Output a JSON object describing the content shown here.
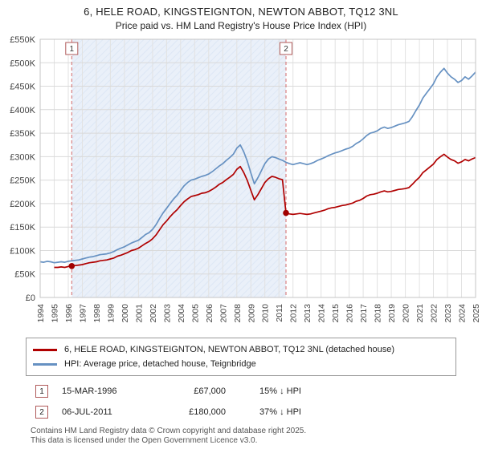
{
  "title": "6, HELE ROAD, KINGSTEIGNTON, NEWTON ABBOT, TQ12 3NL",
  "subtitle": "Price paid vs. HM Land Registry's House Price Index (HPI)",
  "chart_data": {
    "type": "line",
    "x_range": [
      1994,
      2025
    ],
    "y_range": [
      0,
      550
    ],
    "y_unit": "GBP thousands",
    "y_tick_step": 50,
    "y_tick_labels": [
      "£0",
      "£50K",
      "£100K",
      "£150K",
      "£200K",
      "£250K",
      "£300K",
      "£350K",
      "£400K",
      "£450K",
      "£500K",
      "£550K"
    ],
    "x_ticks": [
      1994,
      1995,
      1996,
      1997,
      1998,
      1999,
      2000,
      2001,
      2002,
      2003,
      2004,
      2005,
      2006,
      2007,
      2008,
      2009,
      2010,
      2011,
      2012,
      2013,
      2014,
      2015,
      2016,
      2017,
      2018,
      2019,
      2020,
      2021,
      2022,
      2023,
      2024,
      2025
    ],
    "grid": true,
    "legend_position": "bottom",
    "colors": {
      "shade_fill": "#eaf0f9",
      "shade_stripe": "#dde7f5",
      "dashed_line": "#d46a6a",
      "grid_h": "#d9d9d9",
      "grid_v": "#e2e2e2",
      "plot_border": "#c5c5c5",
      "marker_dot": "#a00000",
      "badge_border": "#b05a5a"
    },
    "shaded_region": {
      "from": 1996.25,
      "to": 2011.5
    },
    "series": [
      {
        "id": "property",
        "name": "6, HELE ROAD, KINGSTEIGNTON, NEWTON ABBOT, TQ12 3NL (detached house)",
        "color": "#b00000",
        "x_start": 1995.0,
        "x_step": 0.25,
        "values": [
          64,
          64,
          65,
          64,
          66,
          67,
          68,
          69,
          70,
          72,
          74,
          75,
          76,
          78,
          79,
          80,
          82,
          84,
          88,
          90,
          93,
          96,
          100,
          102,
          105,
          110,
          115,
          119,
          125,
          133,
          144,
          155,
          163,
          172,
          180,
          187,
          196,
          204,
          210,
          215,
          217,
          219,
          222,
          223,
          226,
          230,
          235,
          241,
          245,
          251,
          256,
          262,
          273,
          279,
          266,
          249,
          228,
          208,
          219,
          232,
          245,
          253,
          258,
          256,
          253,
          251,
          180,
          178,
          177,
          178,
          179,
          178,
          177,
          178,
          180,
          182,
          184,
          186,
          189,
          191,
          192,
          194,
          196,
          197,
          199,
          201,
          205,
          207,
          211,
          216,
          219,
          220,
          222,
          225,
          227,
          225,
          226,
          228,
          230,
          231,
          232,
          234,
          241,
          249,
          256,
          266,
          272,
          278,
          284,
          294,
          300,
          305,
          299,
          294,
          291,
          286,
          289,
          294,
          291,
          295,
          298
        ]
      },
      {
        "id": "hpi",
        "name": "HPI: Average price, detached house, Teignbridge",
        "color": "#6691c2",
        "x_start": 1994.0,
        "x_step": 0.25,
        "values": [
          76,
          75,
          77,
          76,
          74,
          75,
          76,
          75,
          77,
          78,
          79,
          80,
          82,
          84,
          86,
          87,
          89,
          91,
          92,
          93,
          95,
          98,
          102,
          105,
          108,
          112,
          116,
          119,
          122,
          128,
          134,
          138,
          145,
          155,
          168,
          180,
          190,
          200,
          210,
          218,
          228,
          238,
          245,
          250,
          252,
          255,
          258,
          260,
          263,
          268,
          274,
          280,
          285,
          292,
          298,
          305,
          318,
          325,
          310,
          290,
          265,
          242,
          255,
          270,
          285,
          295,
          300,
          298,
          295,
          292,
          288,
          285,
          283,
          285,
          287,
          285,
          283,
          285,
          288,
          292,
          295,
          298,
          302,
          305,
          308,
          310,
          313,
          316,
          318,
          322,
          328,
          332,
          338,
          345,
          350,
          352,
          355,
          360,
          363,
          360,
          362,
          365,
          368,
          370,
          372,
          375,
          385,
          398,
          410,
          425,
          435,
          445,
          455,
          470,
          480,
          488,
          478,
          470,
          465,
          458,
          462,
          470,
          465,
          472,
          480
        ]
      }
    ],
    "markers": [
      {
        "label": "1",
        "x": 1996.25,
        "value": 67
      },
      {
        "label": "2",
        "x": 2011.5,
        "value": 180
      }
    ]
  },
  "annotations": [
    {
      "num": "1",
      "date": "15-MAR-1996",
      "price": "£67,000",
      "delta": "15% ↓ HPI"
    },
    {
      "num": "2",
      "date": "06-JUL-2011",
      "price": "£180,000",
      "delta": "37% ↓ HPI"
    }
  ],
  "footer": {
    "line1": "Contains HM Land Registry data © Crown copyright and database right 2025.",
    "line2": "This data is licensed under the Open Government Licence v3.0."
  }
}
